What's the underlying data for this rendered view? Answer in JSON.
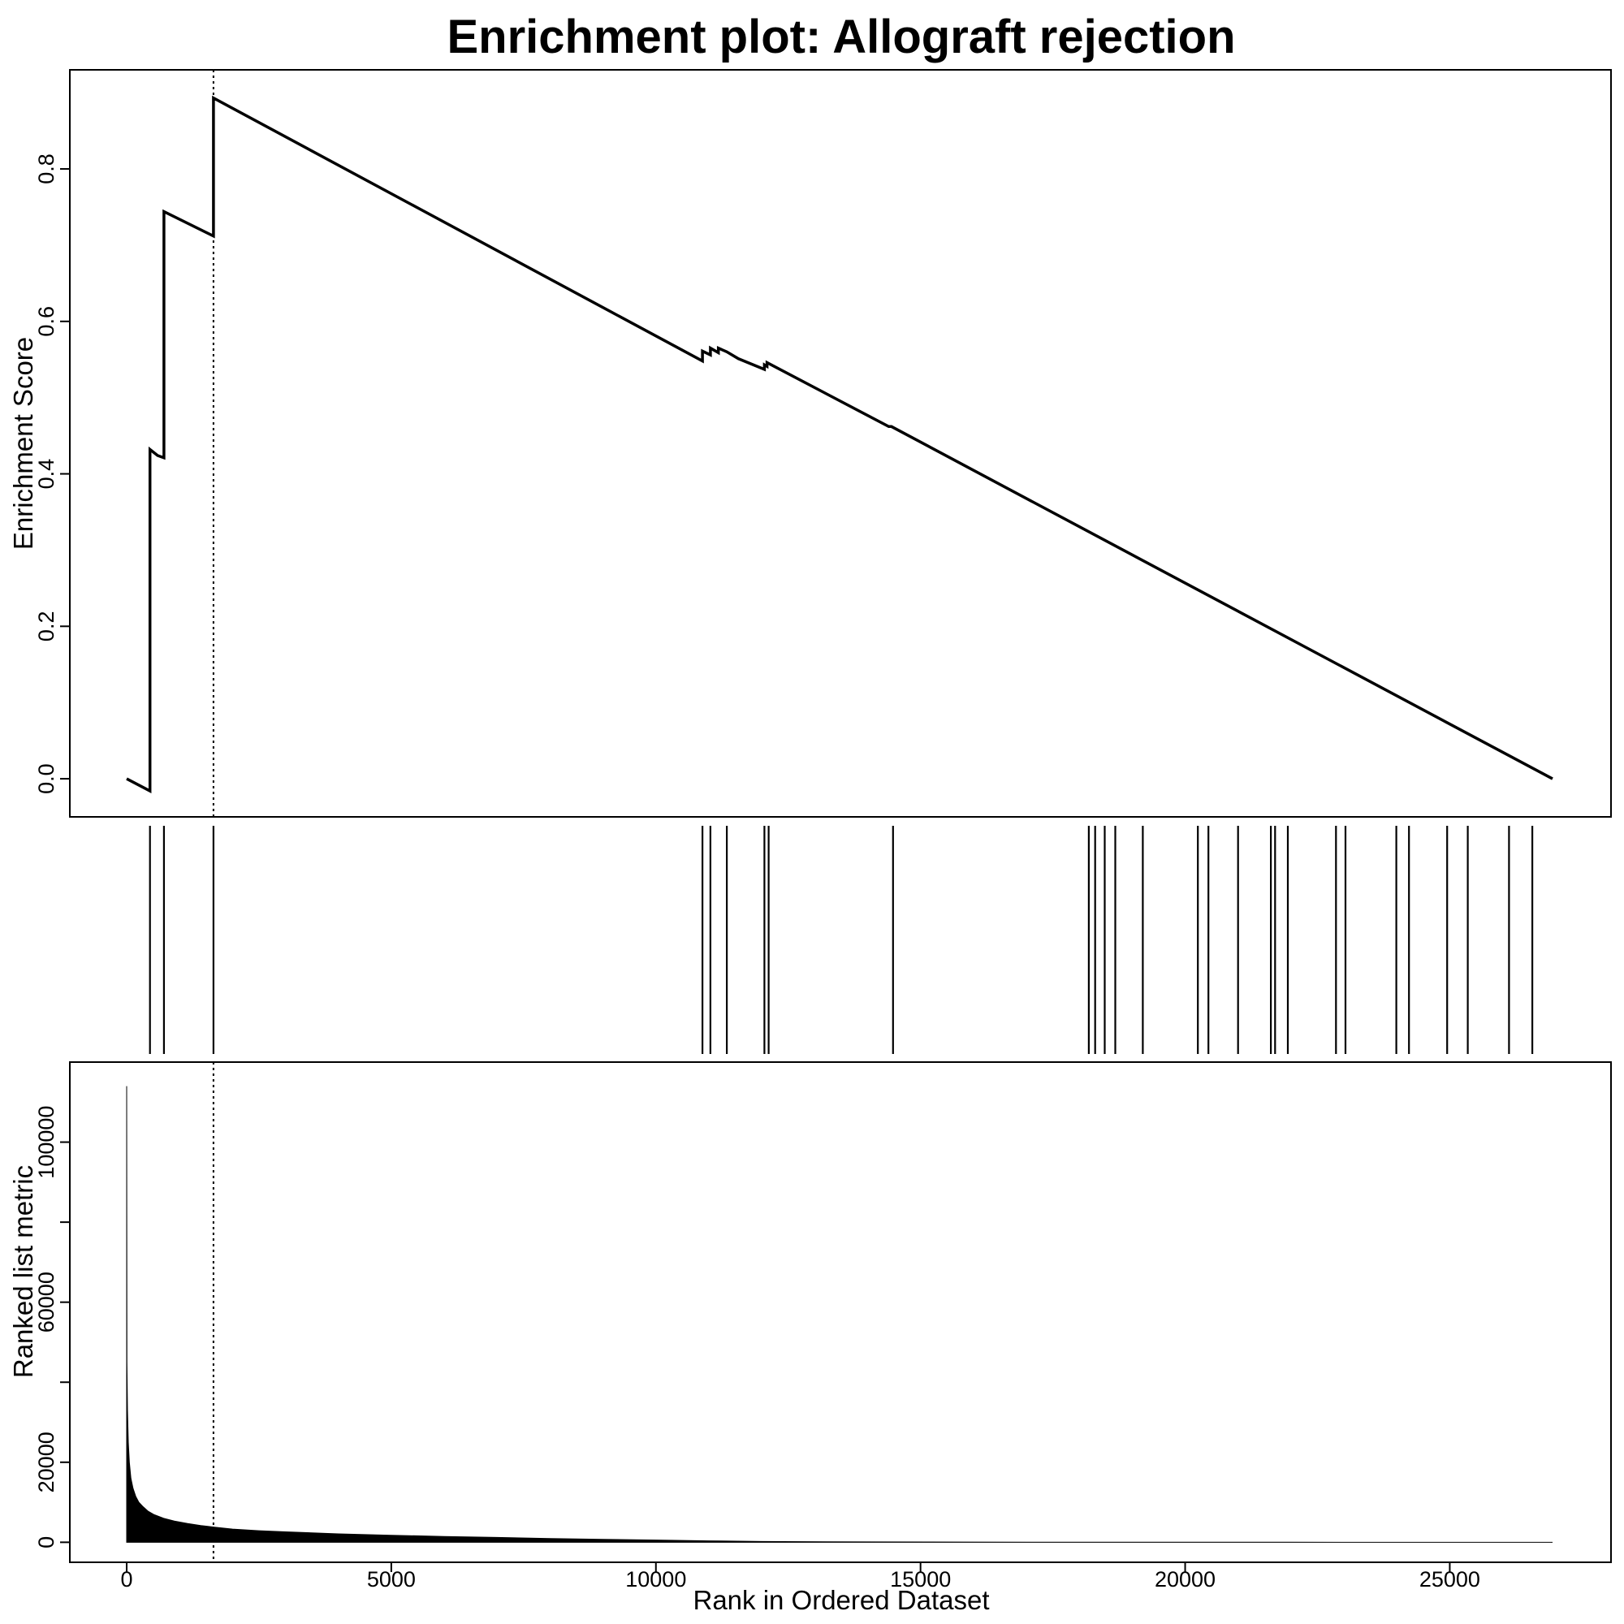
{
  "chart_data": {
    "title": "Enrichment plot: Allograft rejection",
    "xlabel": "Rank in Ordered Dataset",
    "x_range": [
      0,
      26942
    ],
    "x_ticks": [
      0,
      5000,
      10000,
      15000,
      20000,
      25000
    ],
    "x_tick_labels": [
      "0",
      "5000",
      "10000",
      "15000",
      "20000",
      "25000"
    ],
    "grid": false,
    "colors": {
      "line": "#000000",
      "background": "#ffffff"
    },
    "leading_edge_rank": 1640,
    "panels": [
      {
        "name": "enrichment-score",
        "type": "line",
        "ylabel": "Enrichment Score",
        "ylim": [
          -0.05,
          0.93
        ],
        "y_ticks": [
          0.0,
          0.2,
          0.4,
          0.6,
          0.8
        ],
        "y_tick_labels": [
          "0.0",
          "0.2",
          "0.4",
          "0.6",
          "0.8"
        ],
        "x": [
          0,
          440,
          440,
          585,
          585,
          705,
          705,
          1640,
          1640,
          10880,
          10880,
          11030,
          11030,
          11180,
          11180,
          11340,
          11340,
          11560,
          11560,
          12050,
          12050,
          12100,
          12100,
          12180,
          12180,
          14400,
          14450,
          26942
        ],
        "y": [
          0.0,
          -0.016,
          0.432,
          0.424,
          0.424,
          0.421,
          0.744,
          0.712,
          0.893,
          0.548,
          0.561,
          0.556,
          0.565,
          0.559,
          0.565,
          0.56,
          0.56,
          0.551,
          0.551,
          0.537,
          0.543,
          0.541,
          0.546,
          0.543,
          0.543,
          0.462,
          0.462,
          0.0
        ]
      },
      {
        "name": "gene-hits",
        "type": "rug",
        "hits": [
          440,
          705,
          1640,
          10880,
          11030,
          11340,
          12050,
          12130,
          14480,
          18180,
          18300,
          18480,
          18680,
          19200,
          20240,
          20440,
          21000,
          21620,
          21700,
          21940,
          22850,
          23030,
          23990,
          24230,
          24950,
          25340,
          26120,
          26560
        ]
      },
      {
        "name": "ranked-list-metric",
        "type": "area",
        "ylabel": "Ranked list metric",
        "ylim": [
          -5000,
          120000
        ],
        "y_ticks": [
          0,
          20000,
          40000,
          60000,
          80000,
          100000
        ],
        "y_tick_labels": [
          "0",
          "20000",
          "",
          "60000",
          "",
          "100000"
        ],
        "x": [
          0,
          5,
          15,
          30,
          50,
          80,
          120,
          170,
          230,
          300,
          400,
          520,
          700,
          900,
          1150,
          1400,
          1640,
          2000,
          2500,
          3000,
          4000,
          5000,
          6000,
          7000,
          8000,
          9000,
          10000,
          11000,
          12000,
          14000,
          16000,
          18000,
          20000,
          22000,
          24000,
          26000,
          26942
        ],
        "y": [
          114000,
          45000,
          33000,
          25000,
          20000,
          16000,
          13500,
          11500,
          10000,
          9000,
          7800,
          6900,
          6000,
          5300,
          4700,
          4200,
          3800,
          3300,
          2900,
          2600,
          2100,
          1750,
          1450,
          1200,
          950,
          750,
          550,
          350,
          200,
          100,
          50,
          20,
          10,
          5,
          2,
          1,
          0
        ]
      }
    ]
  }
}
